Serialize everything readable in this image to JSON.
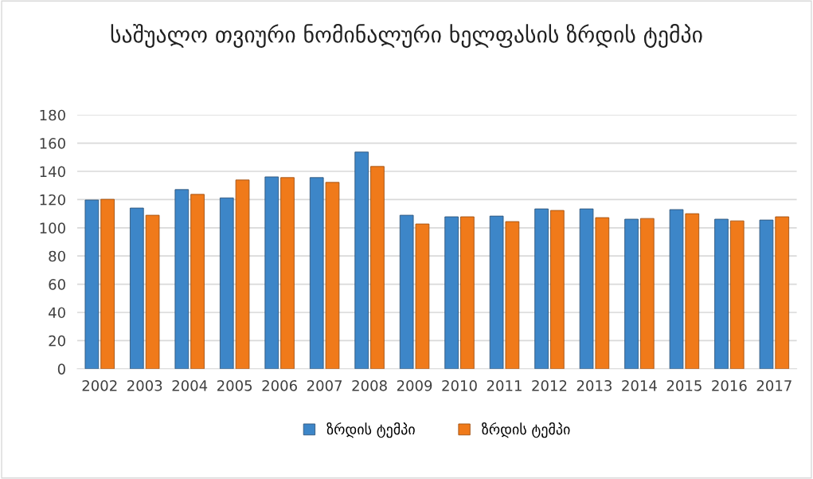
{
  "chart_data": {
    "type": "bar",
    "title": "საშუალო თვიური ნომინალური ხელფასის ზრდის ტემპი",
    "categories": [
      "2002",
      "2003",
      "2004",
      "2005",
      "2006",
      "2007",
      "2008",
      "2009",
      "2010",
      "2011",
      "2012",
      "2013",
      "2014",
      "2015",
      "2016",
      "2017"
    ],
    "series": [
      {
        "name": "ზრდის ტემპი",
        "color": "#3d86c8",
        "values": [
          119.7,
          114.0,
          127.1,
          121.2,
          136.1,
          135.6,
          153.7,
          108.9,
          107.8,
          108.3,
          113.4,
          113.4,
          106.1,
          112.9,
          106.1,
          105.5
        ]
      },
      {
        "name": "ზრდის ტემპი",
        "color": "#f07a1a",
        "values": [
          120.2,
          108.9,
          123.7,
          133.9,
          135.6,
          132.2,
          143.5,
          102.7,
          107.8,
          104.4,
          112.3,
          107.2,
          106.6,
          110.0,
          104.9,
          107.8
        ]
      }
    ],
    "ylim": [
      0,
      180
    ],
    "yticks": [
      0,
      20,
      40,
      60,
      80,
      100,
      120,
      140,
      160,
      180
    ],
    "grid": "y",
    "legend": "bottom"
  }
}
